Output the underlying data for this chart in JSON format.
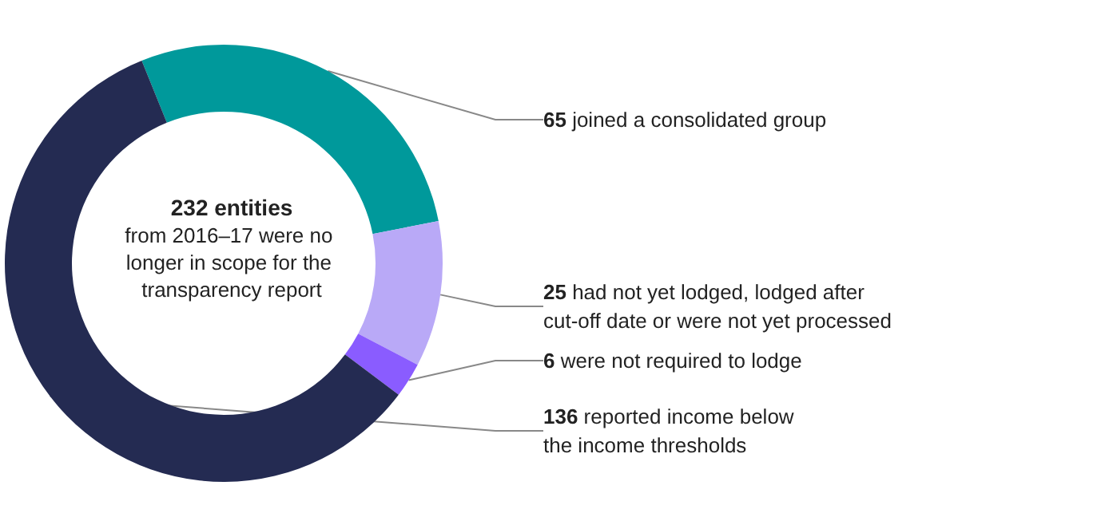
{
  "chart_data": {
    "type": "donut",
    "title": "232 entities",
    "subtitle": "from 2016–17 were no longer in scope for the transparency report",
    "categories": [
      "joined a consolidated group",
      "had not yet lodged, lodged after\ncut-off date or were not yet processed",
      "were not required to lodge",
      "reported income below\nthe income thresholds"
    ],
    "values": [
      65,
      25,
      6,
      136
    ],
    "colors": [
      "#00999b",
      "#b9a9f7",
      "#8a5cff",
      "#242b52"
    ],
    "data_labels": true,
    "legend": false
  }
}
